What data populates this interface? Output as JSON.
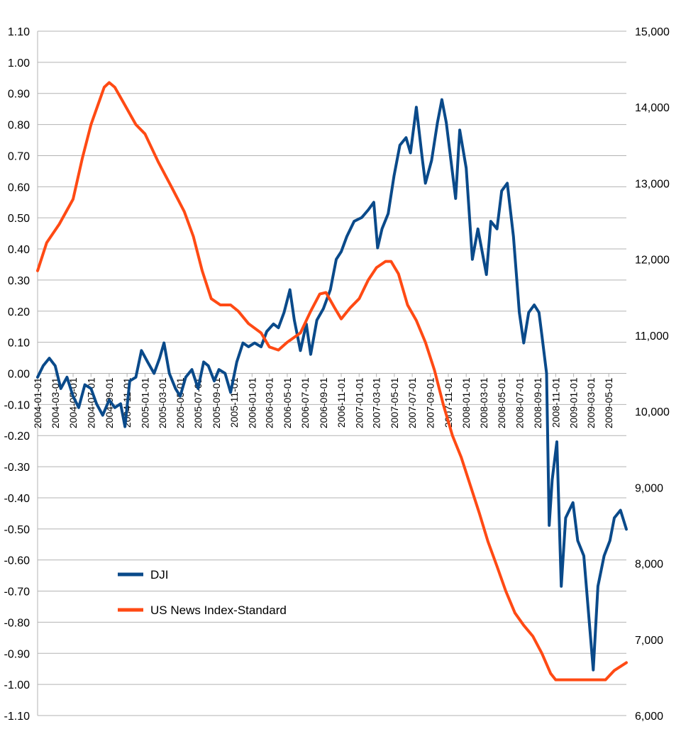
{
  "chart_data": {
    "type": "line",
    "title": "",
    "xlabel": "",
    "ylabel_left": "",
    "ylabel_right": "",
    "grid": true,
    "legend_position": "lower-left inside plot",
    "left_axis": {
      "min": -1.1,
      "max": 1.1,
      "step": 0.1,
      "tick_labels": [
        "1.10",
        "1.00",
        "0.90",
        "0.80",
        "0.70",
        "0.60",
        "0.50",
        "0.40",
        "0.30",
        "0.20",
        "0.10",
        "0.00",
        "-0.10",
        "-0.20",
        "-0.30",
        "-0.40",
        "-0.50",
        "-0.60",
        "-0.70",
        "-0.80",
        "-0.90",
        "-1.00",
        "-1.10"
      ]
    },
    "right_axis": {
      "min": 6000,
      "max": 15000,
      "step": 1000,
      "tick_labels": [
        "15,000",
        "14,000",
        "13,000",
        "12,000",
        "11,000",
        "10,000",
        "9,000",
        "8,000",
        "7,000",
        "6,000"
      ]
    },
    "x_axis": {
      "start": "2004-01-01",
      "end": "2009-06-30",
      "tick_labels": [
        "2004-01-01",
        "2004-03-01",
        "2004-05-01",
        "2004-07-01",
        "2004-09-01",
        "2004-11-01",
        "2005-01-01",
        "2005-03-01",
        "2005-05-01",
        "2005-07-01",
        "2005-09-01",
        "2005-11-01",
        "2006-01-01",
        "2006-03-01",
        "2006-05-01",
        "2006-07-01",
        "2006-09-01",
        "2006-11-01",
        "2007-01-01",
        "2007-03-01",
        "2007-05-01",
        "2007-07-01",
        "2007-09-01",
        "2007-11-01",
        "2008-01-01",
        "2008-03-01",
        "2008-05-01",
        "2008-07-01",
        "2008-09-01",
        "2008-11-01",
        "2009-01-01",
        "2009-03-01",
        "2009-05-01"
      ]
    },
    "series": [
      {
        "name": "DJI",
        "axis": "right",
        "color": "#0a4a8a",
        "points": [
          [
            "2004-01-01",
            10450
          ],
          [
            "2004-01-20",
            10600
          ],
          [
            "2004-02-10",
            10700
          ],
          [
            "2004-03-01",
            10600
          ],
          [
            "2004-03-20",
            10300
          ],
          [
            "2004-04-10",
            10450
          ],
          [
            "2004-05-01",
            10200
          ],
          [
            "2004-05-20",
            10050
          ],
          [
            "2004-06-10",
            10350
          ],
          [
            "2004-07-01",
            10300
          ],
          [
            "2004-07-20",
            10100
          ],
          [
            "2004-08-10",
            9950
          ],
          [
            "2004-09-01",
            10150
          ],
          [
            "2004-09-20",
            10050
          ],
          [
            "2004-10-10",
            10100
          ],
          [
            "2004-10-25",
            9800
          ],
          [
            "2004-11-10",
            10400
          ],
          [
            "2004-12-01",
            10450
          ],
          [
            "2004-12-20",
            10800
          ],
          [
            "2005-01-10",
            10650
          ],
          [
            "2005-02-01",
            10500
          ],
          [
            "2005-02-20",
            10700
          ],
          [
            "2005-03-07",
            10900
          ],
          [
            "2005-03-25",
            10500
          ],
          [
            "2005-04-15",
            10300
          ],
          [
            "2005-05-01",
            10200
          ],
          [
            "2005-05-20",
            10450
          ],
          [
            "2005-06-10",
            10550
          ],
          [
            "2005-07-01",
            10300
          ],
          [
            "2005-07-20",
            10650
          ],
          [
            "2005-08-05",
            10600
          ],
          [
            "2005-08-25",
            10400
          ],
          [
            "2005-09-10",
            10550
          ],
          [
            "2005-10-01",
            10500
          ],
          [
            "2005-10-20",
            10250
          ],
          [
            "2005-11-10",
            10650
          ],
          [
            "2005-12-01",
            10900
          ],
          [
            "2005-12-20",
            10850
          ],
          [
            "2006-01-10",
            10900
          ],
          [
            "2006-02-01",
            10850
          ],
          [
            "2006-02-20",
            11050
          ],
          [
            "2006-03-15",
            11150
          ],
          [
            "2006-04-01",
            11100
          ],
          [
            "2006-04-20",
            11300
          ],
          [
            "2006-05-10",
            11600
          ],
          [
            "2006-05-25",
            11200
          ],
          [
            "2006-06-15",
            10800
          ],
          [
            "2006-07-05",
            11150
          ],
          [
            "2006-07-20",
            10750
          ],
          [
            "2006-08-10",
            11200
          ],
          [
            "2006-09-01",
            11350
          ],
          [
            "2006-09-25",
            11600
          ],
          [
            "2006-10-15",
            12000
          ],
          [
            "2006-11-01",
            12100
          ],
          [
            "2006-11-20",
            12300
          ],
          [
            "2006-12-15",
            12500
          ],
          [
            "2007-01-10",
            12550
          ],
          [
            "2007-02-01",
            12650
          ],
          [
            "2007-02-20",
            12750
          ],
          [
            "2007-03-05",
            12150
          ],
          [
            "2007-03-20",
            12400
          ],
          [
            "2007-04-10",
            12600
          ],
          [
            "2007-04-30",
            13100
          ],
          [
            "2007-05-20",
            13500
          ],
          [
            "2007-06-10",
            13600
          ],
          [
            "2007-06-25",
            13400
          ],
          [
            "2007-07-15",
            14000
          ],
          [
            "2007-08-05",
            13300
          ],
          [
            "2007-08-15",
            13000
          ],
          [
            "2007-09-05",
            13300
          ],
          [
            "2007-09-25",
            13800
          ],
          [
            "2007-10-10",
            14100
          ],
          [
            "2007-10-25",
            13800
          ],
          [
            "2007-11-10",
            13300
          ],
          [
            "2007-11-26",
            12800
          ],
          [
            "2007-12-10",
            13700
          ],
          [
            "2008-01-01",
            13200
          ],
          [
            "2008-01-22",
            12000
          ],
          [
            "2008-02-10",
            12400
          ],
          [
            "2008-03-10",
            11800
          ],
          [
            "2008-03-25",
            12500
          ],
          [
            "2008-04-15",
            12400
          ],
          [
            "2008-05-01",
            12900
          ],
          [
            "2008-05-20",
            13000
          ],
          [
            "2008-06-10",
            12300
          ],
          [
            "2008-06-30",
            11300
          ],
          [
            "2008-07-15",
            10900
          ],
          [
            "2008-08-01",
            11300
          ],
          [
            "2008-08-20",
            11400
          ],
          [
            "2008-09-05",
            11300
          ],
          [
            "2008-09-15",
            11000
          ],
          [
            "2008-10-01",
            10500
          ],
          [
            "2008-10-10",
            8500
          ],
          [
            "2008-10-20",
            9100
          ],
          [
            "2008-11-05",
            9600
          ],
          [
            "2008-11-20",
            7700
          ],
          [
            "2008-12-05",
            8600
          ],
          [
            "2008-12-30",
            8800
          ],
          [
            "2009-01-15",
            8300
          ],
          [
            "2009-02-05",
            8100
          ],
          [
            "2009-02-20",
            7400
          ],
          [
            "2009-03-09",
            6600
          ],
          [
            "2009-03-25",
            7700
          ],
          [
            "2009-04-15",
            8100
          ],
          [
            "2009-05-05",
            8300
          ],
          [
            "2009-05-20",
            8600
          ],
          [
            "2009-06-10",
            8700
          ],
          [
            "2009-06-30",
            8450
          ]
        ]
      },
      {
        "name": "US News Index-Standard",
        "axis": "left",
        "color": "#ff4a14",
        "points": [
          [
            "2004-01-01",
            0.33
          ],
          [
            "2004-02-01",
            0.42
          ],
          [
            "2004-03-15",
            0.48
          ],
          [
            "2004-05-01",
            0.56
          ],
          [
            "2004-06-01",
            0.69
          ],
          [
            "2004-07-01",
            0.8
          ],
          [
            "2004-08-15",
            0.92
          ],
          [
            "2004-09-01",
            0.935
          ],
          [
            "2004-09-20",
            0.92
          ],
          [
            "2004-10-20",
            0.87
          ],
          [
            "2004-12-01",
            0.8
          ],
          [
            "2005-01-01",
            0.77
          ],
          [
            "2005-02-15",
            0.68
          ],
          [
            "2005-04-01",
            0.6
          ],
          [
            "2005-05-15",
            0.52
          ],
          [
            "2005-06-15",
            0.44
          ],
          [
            "2005-07-15",
            0.33
          ],
          [
            "2005-08-15",
            0.24
          ],
          [
            "2005-09-15",
            0.22
          ],
          [
            "2005-10-20",
            0.22
          ],
          [
            "2005-11-15",
            0.2
          ],
          [
            "2005-12-20",
            0.16
          ],
          [
            "2006-02-01",
            0.13
          ],
          [
            "2006-03-01",
            0.085
          ],
          [
            "2006-04-01",
            0.075
          ],
          [
            "2006-05-01",
            0.1
          ],
          [
            "2006-06-15",
            0.13
          ],
          [
            "2006-07-20",
            0.2
          ],
          [
            "2006-08-20",
            0.255
          ],
          [
            "2006-09-10",
            0.26
          ],
          [
            "2006-10-10",
            0.21
          ],
          [
            "2006-11-01",
            0.175
          ],
          [
            "2006-12-01",
            0.21
          ],
          [
            "2007-01-01",
            0.24
          ],
          [
            "2007-02-01",
            0.3
          ],
          [
            "2007-03-01",
            0.34
          ],
          [
            "2007-04-01",
            0.36
          ],
          [
            "2007-04-20",
            0.36
          ],
          [
            "2007-05-15",
            0.32
          ],
          [
            "2007-06-15",
            0.22
          ],
          [
            "2007-07-15",
            0.17
          ],
          [
            "2007-08-15",
            0.1
          ],
          [
            "2007-09-15",
            0.01
          ],
          [
            "2007-10-15",
            -0.1
          ],
          [
            "2007-11-15",
            -0.2
          ],
          [
            "2007-12-15",
            -0.27
          ],
          [
            "2008-01-15",
            -0.36
          ],
          [
            "2008-02-15",
            -0.45
          ],
          [
            "2008-03-15",
            -0.54
          ],
          [
            "2008-04-15",
            -0.62
          ],
          [
            "2008-05-15",
            -0.7
          ],
          [
            "2008-06-15",
            -0.77
          ],
          [
            "2008-07-15",
            -0.81
          ],
          [
            "2008-08-15",
            -0.845
          ],
          [
            "2008-09-15",
            -0.9
          ],
          [
            "2008-10-15",
            -0.965
          ],
          [
            "2008-11-01",
            -0.985
          ],
          [
            "2008-12-01",
            -0.985
          ],
          [
            "2009-01-01",
            -0.985
          ],
          [
            "2009-02-01",
            -0.985
          ],
          [
            "2009-03-01",
            -0.985
          ],
          [
            "2009-04-01",
            -0.985
          ],
          [
            "2009-04-20",
            -0.985
          ],
          [
            "2009-05-20",
            -0.955
          ],
          [
            "2009-06-30",
            -0.93
          ]
        ]
      }
    ]
  }
}
